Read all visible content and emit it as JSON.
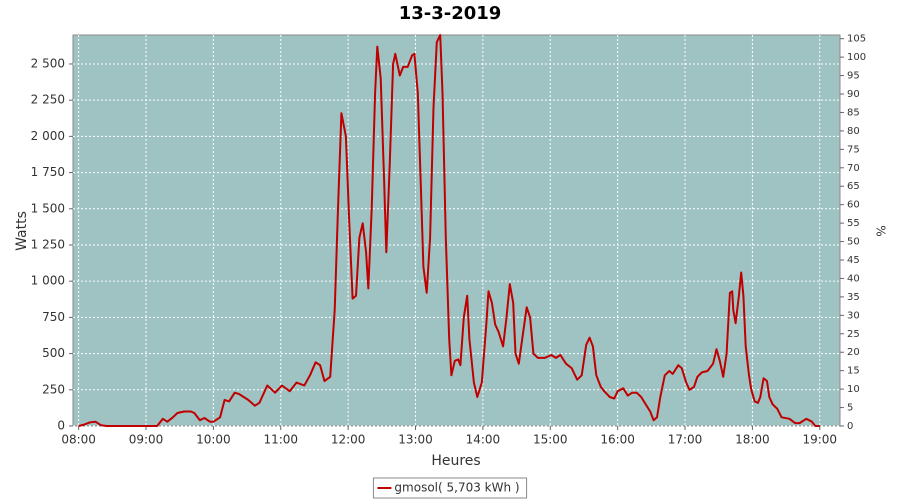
{
  "chart_data": {
    "type": "line",
    "title": "13-3-2019",
    "x_label": "Heures",
    "y_label": "Watts",
    "y2_label": "%",
    "x": [
      "08:00",
      "08:05",
      "08:10",
      "08:15",
      "08:20",
      "08:25",
      "09:10",
      "09:15",
      "09:19",
      "09:24",
      "09:28",
      "09:34",
      "09:40",
      "09:43",
      "09:48",
      "09:52",
      "09:57",
      "10:00",
      "10:06",
      "10:10",
      "10:14",
      "10:19",
      "10:23",
      "10:31",
      "10:37",
      "10:41",
      "10:48",
      "10:55",
      "11:01",
      "11:08",
      "11:14",
      "11:21",
      "11:26",
      "11:31",
      "11:35",
      "11:39",
      "11:44",
      "11:48",
      "11:51",
      "11:54",
      "11:58",
      "12:01",
      "12:04",
      "12:07",
      "12:10",
      "12:13",
      "12:16",
      "12:18",
      "12:21",
      "12:24",
      "12:26",
      "12:29",
      "12:32",
      "12:34",
      "12:37",
      "12:40",
      "12:42",
      "12:46",
      "12:49",
      "12:53",
      "12:57",
      "12:59",
      "13:02",
      "13:05",
      "13:07",
      "13:10",
      "13:13",
      "13:16",
      "13:19",
      "13:22",
      "13:24",
      "13:27",
      "13:30",
      "13:32",
      "13:35",
      "13:38",
      "13:40",
      "13:43",
      "13:46",
      "13:48",
      "13:52",
      "13:55",
      "13:59",
      "14:03",
      "14:05",
      "14:08",
      "14:11",
      "14:14",
      "14:18",
      "14:21",
      "14:24",
      "14:27",
      "14:29",
      "14:32",
      "14:35",
      "14:39",
      "14:42",
      "14:45",
      "14:49",
      "14:55",
      "15:01",
      "15:05",
      "15:09",
      "15:14",
      "15:19",
      "15:24",
      "15:28",
      "15:32",
      "15:35",
      "15:38",
      "15:41",
      "15:45",
      "15:48",
      "15:53",
      "15:57",
      "16:00",
      "16:05",
      "16:09",
      "16:13",
      "16:17",
      "16:21",
      "16:25",
      "16:29",
      "16:32",
      "16:35",
      "16:38",
      "16:42",
      "16:46",
      "16:49",
      "16:54",
      "16:57",
      "17:01",
      "17:04",
      "17:08",
      "17:11",
      "17:15",
      "17:20",
      "17:25",
      "17:28",
      "17:31",
      "17:34",
      "17:37",
      "17:40",
      "17:42",
      "17:43",
      "17:45",
      "17:48",
      "17:50",
      "17:52",
      "17:54",
      "17:57",
      "17:59",
      "18:02",
      "18:05",
      "18:07",
      "18:10",
      "18:13",
      "18:15",
      "18:18",
      "18:22",
      "18:26",
      "18:33",
      "18:38",
      "18:42",
      "18:48",
      "18:53",
      "18:56",
      "19:00"
    ],
    "series": [
      {
        "name": "gmosol( 5,703 kWh )",
        "color": "#c00000",
        "values": [
          0,
          10,
          25,
          30,
          5,
          0,
          0,
          50,
          30,
          60,
          90,
          100,
          100,
          90,
          40,
          55,
          30,
          30,
          60,
          180,
          170,
          230,
          220,
          180,
          140,
          160,
          280,
          230,
          280,
          240,
          300,
          280,
          350,
          440,
          420,
          310,
          340,
          800,
          1500,
          2160,
          2000,
          1400,
          880,
          900,
          1300,
          1400,
          1200,
          950,
          1500,
          2300,
          2620,
          2400,
          1700,
          1200,
          1800,
          2500,
          2570,
          2420,
          2480,
          2480,
          2560,
          2570,
          2300,
          1600,
          1100,
          920,
          1300,
          2200,
          2650,
          2700,
          2300,
          1300,
          600,
          350,
          450,
          460,
          420,
          750,
          900,
          600,
          300,
          200,
          300,
          700,
          930,
          850,
          700,
          650,
          550,
          750,
          980,
          850,
          500,
          430,
          600,
          820,
          750,
          500,
          470,
          470,
          490,
          470,
          490,
          430,
          400,
          320,
          350,
          560,
          610,
          550,
          350,
          270,
          240,
          200,
          190,
          240,
          260,
          210,
          230,
          230,
          200,
          150,
          100,
          40,
          60,
          200,
          350,
          380,
          360,
          420,
          400,
          300,
          250,
          270,
          340,
          370,
          380,
          430,
          530,
          450,
          340,
          500,
          920,
          930,
          800,
          710,
          900,
          1060,
          900,
          550,
          350,
          250,
          170,
          160,
          200,
          330,
          310,
          200,
          150,
          120,
          60,
          50,
          20,
          20,
          50,
          30,
          0,
          0
        ]
      }
    ],
    "xlim": [
      "07:55",
      "19:18"
    ],
    "xticks": [
      "08:00",
      "09:00",
      "10:00",
      "11:00",
      "12:00",
      "13:00",
      "14:00",
      "15:00",
      "16:00",
      "17:00",
      "18:00",
      "19:00"
    ],
    "ylim": [
      0,
      2700
    ],
    "yticks": [
      0,
      250,
      500,
      750,
      {
        "value": 1000,
        "label": "1 000"
      },
      {
        "value": 1250,
        "label": "1 250"
      },
      {
        "value": 1500,
        "label": "1 500"
      },
      {
        "value": 1750,
        "label": "1 750"
      },
      {
        "value": 2000,
        "label": "2 000"
      },
      {
        "value": 2250,
        "label": "2 250"
      },
      {
        "value": 2500,
        "label": "2 500"
      }
    ],
    "y2lim": [
      0,
      106
    ],
    "y2ticks": [
      0,
      5,
      10,
      15,
      20,
      25,
      30,
      35,
      40,
      45,
      50,
      55,
      60,
      65,
      70,
      75,
      80,
      85,
      90,
      95,
      100,
      105
    ],
    "grid": true,
    "legend": "bottom",
    "plot_background": "#9fc3c3"
  }
}
